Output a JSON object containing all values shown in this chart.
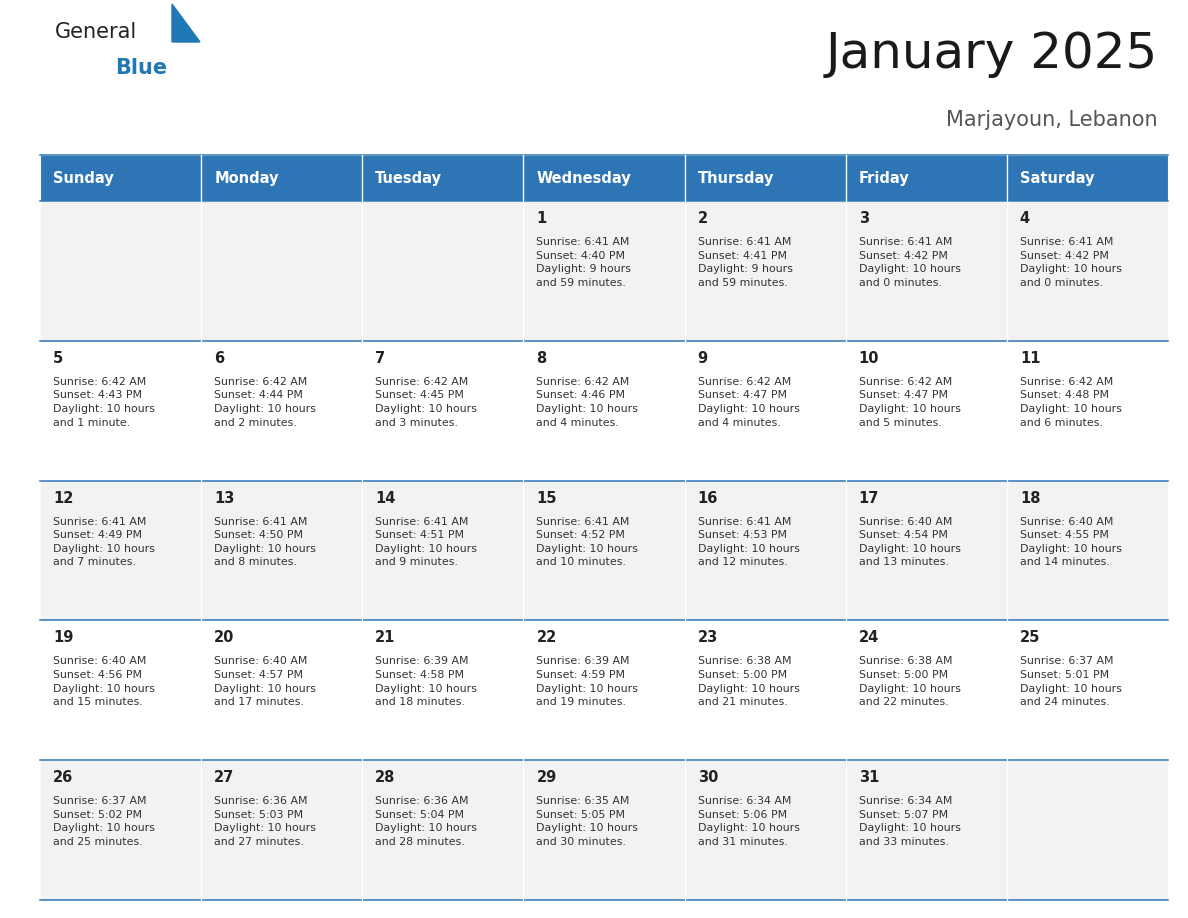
{
  "title": "January 2025",
  "subtitle": "Marjayoun, Lebanon",
  "days_of_week": [
    "Sunday",
    "Monday",
    "Tuesday",
    "Wednesday",
    "Thursday",
    "Friday",
    "Saturday"
  ],
  "header_bg": "#2E75B6",
  "header_text": "#FFFFFF",
  "row_bg_light": "#F2F2F2",
  "row_bg_white": "#FFFFFF",
  "cell_border": "#2E75B6",
  "day_num_color": "#222222",
  "text_color": "#333333",
  "calendar_data": [
    [
      null,
      null,
      null,
      {
        "day": 1,
        "sunrise": "6:41 AM",
        "sunset": "4:40 PM",
        "daylight": "9 hours\nand 59 minutes."
      },
      {
        "day": 2,
        "sunrise": "6:41 AM",
        "sunset": "4:41 PM",
        "daylight": "9 hours\nand 59 minutes."
      },
      {
        "day": 3,
        "sunrise": "6:41 AM",
        "sunset": "4:42 PM",
        "daylight": "10 hours\nand 0 minutes."
      },
      {
        "day": 4,
        "sunrise": "6:41 AM",
        "sunset": "4:42 PM",
        "daylight": "10 hours\nand 0 minutes."
      }
    ],
    [
      {
        "day": 5,
        "sunrise": "6:42 AM",
        "sunset": "4:43 PM",
        "daylight": "10 hours\nand 1 minute."
      },
      {
        "day": 6,
        "sunrise": "6:42 AM",
        "sunset": "4:44 PM",
        "daylight": "10 hours\nand 2 minutes."
      },
      {
        "day": 7,
        "sunrise": "6:42 AM",
        "sunset": "4:45 PM",
        "daylight": "10 hours\nand 3 minutes."
      },
      {
        "day": 8,
        "sunrise": "6:42 AM",
        "sunset": "4:46 PM",
        "daylight": "10 hours\nand 4 minutes."
      },
      {
        "day": 9,
        "sunrise": "6:42 AM",
        "sunset": "4:47 PM",
        "daylight": "10 hours\nand 4 minutes."
      },
      {
        "day": 10,
        "sunrise": "6:42 AM",
        "sunset": "4:47 PM",
        "daylight": "10 hours\nand 5 minutes."
      },
      {
        "day": 11,
        "sunrise": "6:42 AM",
        "sunset": "4:48 PM",
        "daylight": "10 hours\nand 6 minutes."
      }
    ],
    [
      {
        "day": 12,
        "sunrise": "6:41 AM",
        "sunset": "4:49 PM",
        "daylight": "10 hours\nand 7 minutes."
      },
      {
        "day": 13,
        "sunrise": "6:41 AM",
        "sunset": "4:50 PM",
        "daylight": "10 hours\nand 8 minutes."
      },
      {
        "day": 14,
        "sunrise": "6:41 AM",
        "sunset": "4:51 PM",
        "daylight": "10 hours\nand 9 minutes."
      },
      {
        "day": 15,
        "sunrise": "6:41 AM",
        "sunset": "4:52 PM",
        "daylight": "10 hours\nand 10 minutes."
      },
      {
        "day": 16,
        "sunrise": "6:41 AM",
        "sunset": "4:53 PM",
        "daylight": "10 hours\nand 12 minutes."
      },
      {
        "day": 17,
        "sunrise": "6:40 AM",
        "sunset": "4:54 PM",
        "daylight": "10 hours\nand 13 minutes."
      },
      {
        "day": 18,
        "sunrise": "6:40 AM",
        "sunset": "4:55 PM",
        "daylight": "10 hours\nand 14 minutes."
      }
    ],
    [
      {
        "day": 19,
        "sunrise": "6:40 AM",
        "sunset": "4:56 PM",
        "daylight": "10 hours\nand 15 minutes."
      },
      {
        "day": 20,
        "sunrise": "6:40 AM",
        "sunset": "4:57 PM",
        "daylight": "10 hours\nand 17 minutes."
      },
      {
        "day": 21,
        "sunrise": "6:39 AM",
        "sunset": "4:58 PM",
        "daylight": "10 hours\nand 18 minutes."
      },
      {
        "day": 22,
        "sunrise": "6:39 AM",
        "sunset": "4:59 PM",
        "daylight": "10 hours\nand 19 minutes."
      },
      {
        "day": 23,
        "sunrise": "6:38 AM",
        "sunset": "5:00 PM",
        "daylight": "10 hours\nand 21 minutes."
      },
      {
        "day": 24,
        "sunrise": "6:38 AM",
        "sunset": "5:00 PM",
        "daylight": "10 hours\nand 22 minutes."
      },
      {
        "day": 25,
        "sunrise": "6:37 AM",
        "sunset": "5:01 PM",
        "daylight": "10 hours\nand 24 minutes."
      }
    ],
    [
      {
        "day": 26,
        "sunrise": "6:37 AM",
        "sunset": "5:02 PM",
        "daylight": "10 hours\nand 25 minutes."
      },
      {
        "day": 27,
        "sunrise": "6:36 AM",
        "sunset": "5:03 PM",
        "daylight": "10 hours\nand 27 minutes."
      },
      {
        "day": 28,
        "sunrise": "6:36 AM",
        "sunset": "5:04 PM",
        "daylight": "10 hours\nand 28 minutes."
      },
      {
        "day": 29,
        "sunrise": "6:35 AM",
        "sunset": "5:05 PM",
        "daylight": "10 hours\nand 30 minutes."
      },
      {
        "day": 30,
        "sunrise": "6:34 AM",
        "sunset": "5:06 PM",
        "daylight": "10 hours\nand 31 minutes."
      },
      {
        "day": 31,
        "sunrise": "6:34 AM",
        "sunset": "5:07 PM",
        "daylight": "10 hours\nand 33 minutes."
      },
      null
    ]
  ],
  "logo_color_general": "#222222",
  "logo_color_blue": "#2078B4"
}
